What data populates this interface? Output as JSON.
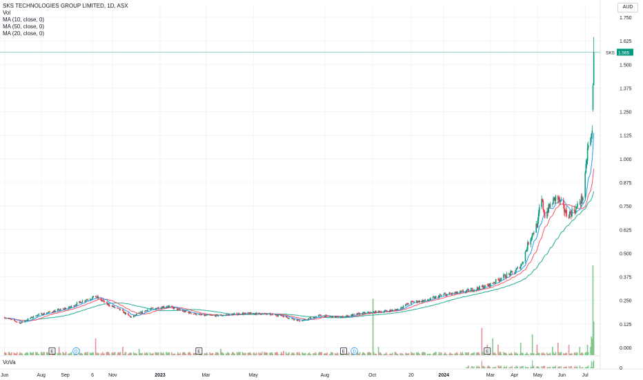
{
  "header": {
    "title": "SKS TECHNOLOGIES GROUP LIMITED, 1D, ASX",
    "indicators": [
      "Vol",
      "MA (10, close, 0)",
      "MA (50, close, 0)",
      "MA (20, close, 0)"
    ],
    "currency": "AUD"
  },
  "last_price": {
    "symbol": "SKS",
    "value": "1.565",
    "color": "#089981"
  },
  "subpane": {
    "label": "VoVa",
    "axis_label": "0"
  },
  "colors": {
    "up": "#089981",
    "down": "#f23645",
    "vol_up": "#7ec88a",
    "vol_down": "#e58f8f",
    "ma10": "#2196f3",
    "ma20": "#f7525f",
    "ma50": "#22ab94",
    "grid": "#f0f3fa",
    "axis_text": "#131722"
  },
  "events": [
    {
      "label": "E",
      "date": "2022-08-15"
    },
    {
      "label": "D",
      "date": "2022-09-15"
    },
    {
      "label": "E",
      "date": "2023-02-20"
    },
    {
      "label": "E",
      "date": "2023-08-25"
    },
    {
      "label": "D",
      "date": "2023-09-08"
    },
    {
      "label": "E",
      "date": "2024-02-26"
    }
  ],
  "chart_data": {
    "type": "candlestick",
    "title": "SKS TECHNOLOGIES GROUP LIMITED, 1D, ASX",
    "x_tick_labels": [
      "Jun",
      "Aug",
      "Sep",
      "6",
      "Nov",
      "2023",
      "Mar",
      "May",
      "Aug",
      "Oct",
      "20",
      "2024",
      "Mar",
      "Apr",
      "May",
      "Jun",
      "Jul"
    ],
    "x_tick_dates": [
      "2022-06-15",
      "2022-08-01",
      "2022-09-01",
      "2022-10-06",
      "2022-11-01",
      "2023-01-01",
      "2023-03-01",
      "2023-05-01",
      "2023-08-01",
      "2023-10-01",
      "2023-11-20",
      "2024-01-01",
      "2024-03-01",
      "2024-04-01",
      "2024-05-01",
      "2024-06-01",
      "2024-07-01"
    ],
    "x_range": [
      "2022-06-15",
      "2024-07-12"
    ],
    "y_tick_labels": [
      "0.000",
      "0.125",
      "0.250",
      "0.375",
      "0.500",
      "0.625",
      "0.750",
      "0.875",
      "1.000",
      "1.125",
      "1.250",
      "1.375",
      "1.500",
      "1.625",
      "1.750"
    ],
    "y_range": [
      -0.03,
      1.8
    ],
    "scale": "linear",
    "price_anchors": [
      [
        "2022-06-15",
        0.16
      ],
      [
        "2022-07-05",
        0.13
      ],
      [
        "2022-07-25",
        0.17
      ],
      [
        "2022-08-15",
        0.19
      ],
      [
        "2022-09-05",
        0.21
      ],
      [
        "2022-09-25",
        0.25
      ],
      [
        "2022-10-10",
        0.27
      ],
      [
        "2022-10-25",
        0.23
      ],
      [
        "2022-11-10",
        0.2
      ],
      [
        "2022-11-25",
        0.16
      ],
      [
        "2022-12-15",
        0.2
      ],
      [
        "2023-01-10",
        0.22
      ],
      [
        "2023-02-01",
        0.19
      ],
      [
        "2023-02-25",
        0.17
      ],
      [
        "2023-03-20",
        0.17
      ],
      [
        "2023-04-15",
        0.18
      ],
      [
        "2023-05-10",
        0.18
      ],
      [
        "2023-06-05",
        0.17
      ],
      [
        "2023-07-01",
        0.14
      ],
      [
        "2023-07-25",
        0.17
      ],
      [
        "2023-08-20",
        0.16
      ],
      [
        "2023-09-15",
        0.18
      ],
      [
        "2023-10-10",
        0.19
      ],
      [
        "2023-11-01",
        0.2
      ],
      [
        "2023-11-20",
        0.24
      ],
      [
        "2023-12-10",
        0.25
      ],
      [
        "2024-01-01",
        0.28
      ],
      [
        "2024-01-20",
        0.29
      ],
      [
        "2024-02-10",
        0.31
      ],
      [
        "2024-02-28",
        0.33
      ],
      [
        "2024-03-15",
        0.37
      ],
      [
        "2024-04-01",
        0.4
      ],
      [
        "2024-04-10",
        0.44
      ],
      [
        "2024-04-20",
        0.57
      ],
      [
        "2024-05-01",
        0.66
      ],
      [
        "2024-05-05",
        0.8
      ],
      [
        "2024-05-10",
        0.7
      ],
      [
        "2024-05-18",
        0.76
      ],
      [
        "2024-05-25",
        0.8
      ],
      [
        "2024-06-01",
        0.75
      ],
      [
        "2024-06-08",
        0.7
      ],
      [
        "2024-06-20",
        0.74
      ],
      [
        "2024-06-28",
        0.8
      ],
      [
        "2024-07-01",
        0.9
      ],
      [
        "2024-07-04",
        1.05
      ],
      [
        "2024-07-08",
        1.1
      ],
      [
        "2024-07-10",
        1.14
      ],
      [
        "2024-07-11",
        1.4
      ],
      [
        "2024-07-12",
        1.565
      ]
    ],
    "last_value": 1.565,
    "series": [
      {
        "name": "MA (10, close, 0)",
        "kind": "moving-average",
        "period": 10
      },
      {
        "name": "MA (20, close, 0)",
        "kind": "moving-average",
        "period": 20
      },
      {
        "name": "MA (50, close, 0)",
        "kind": "moving-average",
        "period": 50
      },
      {
        "name": "Vol",
        "kind": "volume",
        "max_value": 0.43
      }
    ],
    "volume_spikes": [
      [
        "2022-08-25",
        0.04
      ],
      [
        "2022-09-20",
        0.03
      ],
      [
        "2022-10-10",
        0.08
      ],
      [
        "2022-11-15",
        0.04
      ],
      [
        "2022-12-05",
        0.03
      ],
      [
        "2023-03-20",
        0.03
      ],
      [
        "2023-06-10",
        0.02
      ],
      [
        "2023-10-02",
        0.27
      ],
      [
        "2023-10-10",
        0.04
      ],
      [
        "2024-02-20",
        0.13
      ],
      [
        "2024-02-25",
        0.05
      ],
      [
        "2024-03-05",
        0.08
      ],
      [
        "2024-03-10",
        0.05
      ],
      [
        "2024-04-10",
        0.06
      ],
      [
        "2024-04-25",
        0.1
      ],
      [
        "2024-05-01",
        0.05
      ],
      [
        "2024-05-20",
        0.04
      ],
      [
        "2024-05-28",
        0.06
      ],
      [
        "2024-06-10",
        0.05
      ],
      [
        "2024-06-25",
        0.04
      ],
      [
        "2024-07-05",
        0.05
      ],
      [
        "2024-07-08",
        0.04
      ],
      [
        "2024-07-09",
        0.09
      ],
      [
        "2024-07-10",
        0.08
      ],
      [
        "2024-07-11",
        0.43
      ],
      [
        "2024-07-12",
        0.16
      ]
    ]
  }
}
